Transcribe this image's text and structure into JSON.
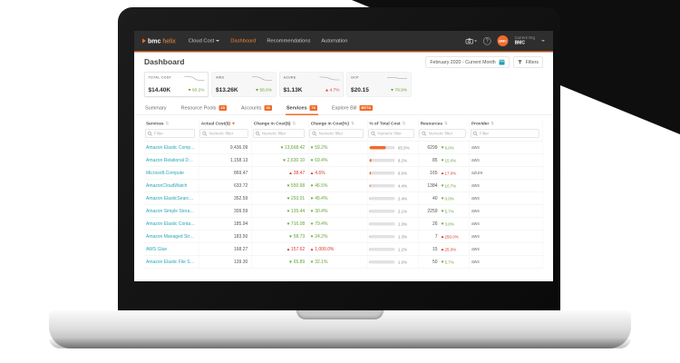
{
  "colors": {
    "accent": "#f26a2a",
    "nav_bg": "#2e2e2e",
    "teal": "#1fa0b0",
    "green": "#67a338",
    "red": "#d93a2b"
  },
  "nav": {
    "logo": {
      "bmc": "bmc",
      "helix": "helix"
    },
    "items": [
      {
        "label": "Cloud Cost",
        "caret": true
      },
      {
        "label": "Dashboard",
        "active": true
      },
      {
        "label": "Recommendations"
      },
      {
        "label": "Automation"
      }
    ],
    "right": {
      "avatar_text": "BMC",
      "org_label": "Current Org",
      "org_name": "BMC",
      "help_glyph": "?"
    }
  },
  "header": {
    "title": "Dashboard",
    "date_range": "February 2020 - Current Month",
    "filters_label": "Filters"
  },
  "kpis": [
    {
      "label": "TOTAL COST",
      "value": "$14.40K",
      "delta_pct": "90.2%",
      "trend": "down",
      "tone": "good",
      "selected": true,
      "spark": [
        3,
        3,
        4,
        10,
        11,
        11
      ]
    },
    {
      "label": "AWS",
      "value": "$13.26K",
      "delta_pct": "58.6%",
      "trend": "down",
      "tone": "good",
      "selected": false,
      "spark": [
        3,
        3,
        5,
        10,
        11,
        11
      ]
    },
    {
      "label": "AZURE",
      "value": "$1.13K",
      "delta_pct": "4.7%",
      "trend": "up",
      "tone": "bad",
      "selected": false,
      "spark": [
        4,
        4,
        5,
        9,
        10,
        10
      ]
    },
    {
      "label": "GCP",
      "value": "$20.15",
      "delta_pct": "79.9%",
      "trend": "down",
      "tone": "good",
      "selected": false,
      "spark": [
        5,
        5,
        5,
        7,
        7,
        7
      ]
    }
  ],
  "tabs": [
    {
      "label": "Summary"
    },
    {
      "label": "Resource Pools",
      "badge": "15"
    },
    {
      "label": "Accounts",
      "badge": "26"
    },
    {
      "label": "Services",
      "badge": "76",
      "active": true
    },
    {
      "label": "Explore Bill",
      "badge": "BETA"
    }
  ],
  "table": {
    "columns": [
      {
        "label": "Services",
        "placeholder": "Filter",
        "sort": "both"
      },
      {
        "label": "Actual Cost($)",
        "placeholder": "Numeric filter",
        "sort": "desc"
      },
      {
        "label": "Change in Cost($)",
        "placeholder": "Numeric filter",
        "sort": "both"
      },
      {
        "label": "Change in Cost(%)",
        "placeholder": "Numeric filter",
        "sort": "both"
      },
      {
        "label": "% of Total Cost",
        "placeholder": "Numeric filter",
        "sort": "both"
      },
      {
        "label": "Resources",
        "placeholder": "Numeric filter",
        "sort": "both"
      },
      {
        "label": "Provider",
        "placeholder": "Filter",
        "sort": "both"
      }
    ],
    "rows": [
      {
        "service": "Amazon Elastic Compute Cloud",
        "actual": "9,436.09",
        "chg": "13,668.42",
        "chg_dir": "down",
        "chg_pct": "59.2%",
        "pct": 65.5,
        "pct_label": "65.5%",
        "res": "6299",
        "res_chg": "6.0%",
        "res_dir": "down",
        "provider": "aws"
      },
      {
        "service": "Amazon Relational Database Service",
        "actual": "1,158.13",
        "chg": "2,630.10",
        "chg_dir": "down",
        "chg_pct": "69.4%",
        "pct": 8.2,
        "pct_label": "8.2%",
        "res": "85",
        "res_chg": "15.0%",
        "res_dir": "down",
        "provider": "aws"
      },
      {
        "service": "Microsoft.Compute",
        "actual": "869.47",
        "chg": "38.47",
        "chg_dir": "up",
        "chg_pct": "4.6%",
        "pct": 6.0,
        "pct_label": "6.0%",
        "res": "165",
        "res_chg": "17.0%",
        "res_dir": "up",
        "provider": "azure"
      },
      {
        "service": "AmazonCloudWatch",
        "actual": "633.72",
        "chg": "550.68",
        "chg_dir": "down",
        "chg_pct": "46.5%",
        "pct": 4.4,
        "pct_label": "4.4%",
        "res": "1384",
        "res_chg": "10.7%",
        "res_dir": "down",
        "provider": "aws"
      },
      {
        "service": "Amazon ElasticSearch Service",
        "actual": "352.59",
        "chg": "293.01",
        "chg_dir": "down",
        "chg_pct": "45.4%",
        "pct": 2.4,
        "pct_label": "2.4%",
        "res": "40",
        "res_chg": "0.0%",
        "res_dir": "down",
        "provider": "aws"
      },
      {
        "service": "Amazon Simple Storage Service",
        "actual": "309.59",
        "chg": "135.44",
        "chg_dir": "down",
        "chg_pct": "30.4%",
        "pct": 2.1,
        "pct_label": "2.1%",
        "res": "2259",
        "res_chg": "5.7%",
        "res_dir": "down",
        "provider": "aws"
      },
      {
        "service": "Amazon Elastic Container Service",
        "actual": "185.94",
        "chg": "716.08",
        "chg_dir": "down",
        "chg_pct": "79.4%",
        "pct": 1.3,
        "pct_label": "1.3%",
        "res": "26",
        "res_chg": "3.0%",
        "res_dir": "down",
        "provider": "aws"
      },
      {
        "service": "Amazon Managed Streaming for Apache Kafka",
        "actual": "183.50",
        "chg": "58.73",
        "chg_dir": "down",
        "chg_pct": "24.2%",
        "pct": 1.3,
        "pct_label": "1.3%",
        "res": "7",
        "res_chg": "250.0%",
        "res_dir": "up",
        "provider": "aws"
      },
      {
        "service": "AWS Glue",
        "actual": "168.27",
        "chg": "157.62",
        "chg_dir": "up",
        "chg_pct": "1,000.0%",
        "pct": 1.2,
        "pct_label": "1.2%",
        "res": "15",
        "res_chg": "25.0%",
        "res_dir": "up",
        "provider": "aws"
      },
      {
        "service": "Amazon Elastic File System",
        "actual": "139.30",
        "chg": "65.89",
        "chg_dir": "down",
        "chg_pct": "32.1%",
        "pct": 1.0,
        "pct_label": "1.0%",
        "res": "50",
        "res_chg": "5.7%",
        "res_dir": "down",
        "provider": "aws"
      }
    ]
  }
}
